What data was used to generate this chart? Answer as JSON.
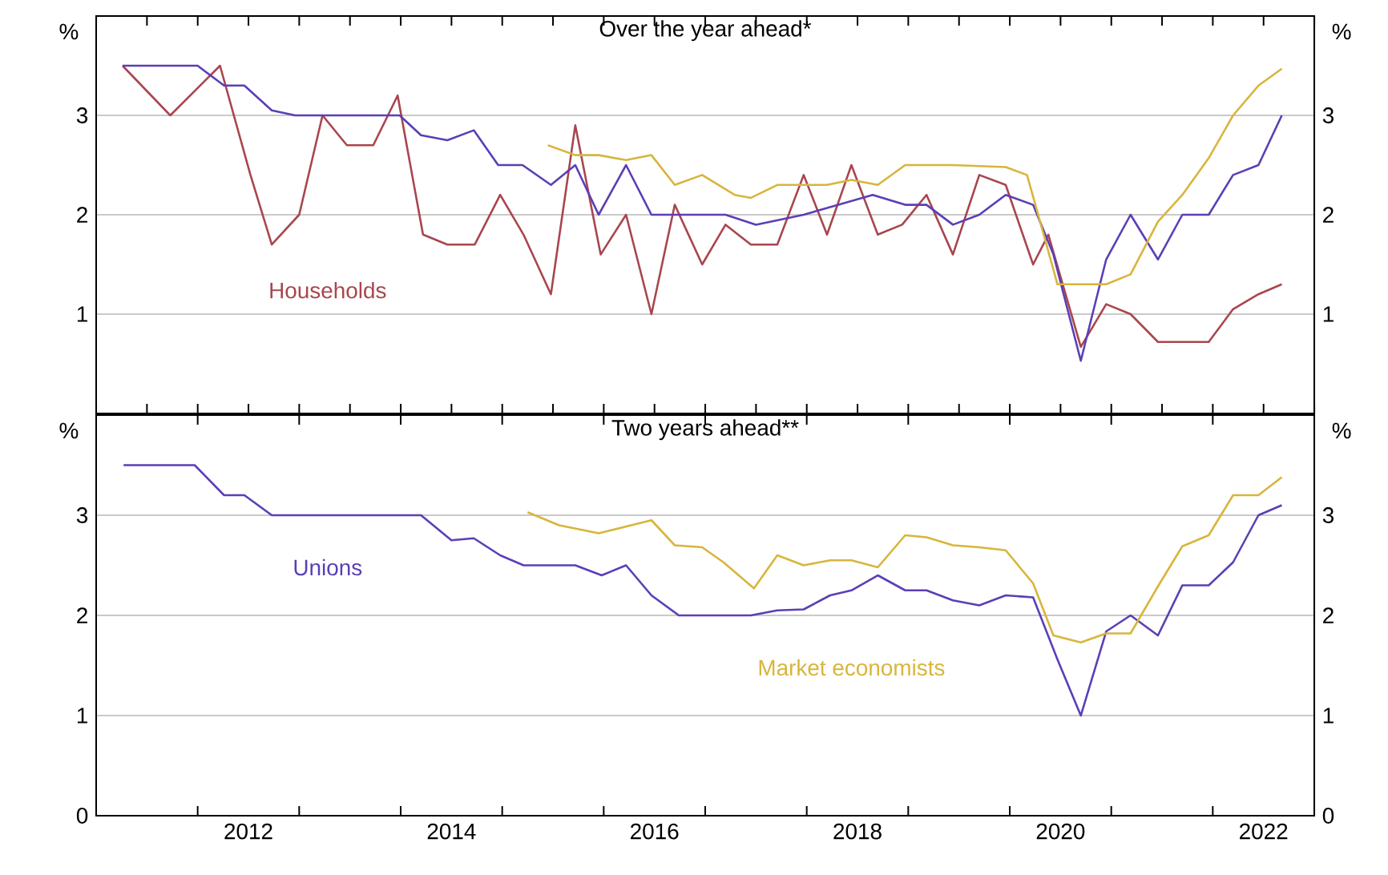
{
  "chart_data": [
    {
      "type": "line",
      "title": "Over the year ahead*",
      "ylabel": "%",
      "y2label": "%",
      "xlim": [
        2011,
        2023
      ],
      "ylim": [
        0,
        4
      ],
      "yticks": [
        1,
        2,
        3
      ],
      "y2lim": [
        0,
        4
      ],
      "y2ticks": [
        1,
        2,
        3
      ],
      "grid": "y",
      "tick_labels": "y",
      "series": [
        {
          "name": "Households",
          "color": "#a8464e",
          "x": [
            2011.26,
            2011.73,
            2012.22,
            2012.52,
            2012.73,
            2013.0,
            2013.23,
            2013.47,
            2013.73,
            2013.97,
            2014.22,
            2014.46,
            2014.73,
            2014.98,
            2015.21,
            2015.48,
            2015.72,
            2015.97,
            2016.22,
            2016.47,
            2016.7,
            2016.97,
            2017.2,
            2017.45,
            2017.71,
            2017.97,
            2018.2,
            2018.44,
            2018.7,
            2018.94,
            2019.18,
            2019.44,
            2019.7,
            2019.96,
            2020.23,
            2020.38,
            2020.7,
            2020.95,
            2021.19,
            2021.46,
            2021.7,
            2021.96,
            2022.2,
            2022.45,
            2022.68
          ],
          "values": [
            3.5,
            3.0,
            3.5,
            2.4,
            1.7,
            2.0,
            3.0,
            2.7,
            2.7,
            3.2,
            1.8,
            1.7,
            1.7,
            2.2,
            1.8,
            1.2,
            2.9,
            1.6,
            2.0,
            1.0,
            2.1,
            1.5,
            1.9,
            1.7,
            1.7,
            2.4,
            1.8,
            2.5,
            1.8,
            1.9,
            2.2,
            1.6,
            2.4,
            2.3,
            1.5,
            1.8,
            0.67,
            1.1,
            1.0,
            0.72,
            0.72,
            0.72,
            1.05,
            1.2,
            1.3
          ]
        },
        {
          "color": "#5b3fb5",
          "x": [
            2011.26,
            2012.0,
            2012.26,
            2012.46,
            2012.73,
            2012.96,
            2013.99,
            2014.2,
            2014.46,
            2014.72,
            2014.96,
            2015.2,
            2015.48,
            2015.72,
            2015.95,
            2016.22,
            2016.47,
            2017.2,
            2017.5,
            2017.97,
            2018.65,
            2018.97,
            2019.18,
            2019.44,
            2019.7,
            2019.96,
            2020.23,
            2020.43,
            2020.7,
            2020.95,
            2021.19,
            2021.46,
            2021.7,
            2021.96,
            2022.2,
            2022.45,
            2022.68
          ],
          "values": [
            3.5,
            3.5,
            3.3,
            3.3,
            3.05,
            3.0,
            3.0,
            2.8,
            2.75,
            2.85,
            2.5,
            2.5,
            2.3,
            2.5,
            2.0,
            2.5,
            2.0,
            2.0,
            1.9,
            2.0,
            2.2,
            2.1,
            2.1,
            1.9,
            2.0,
            2.2,
            2.1,
            1.6,
            0.53,
            1.55,
            2.0,
            1.55,
            2.0,
            2.0,
            2.4,
            2.5,
            3.0
          ]
        },
        {
          "color": "#d8b53c",
          "x": [
            2015.45,
            2015.72,
            2015.95,
            2016.22,
            2016.47,
            2016.7,
            2016.97,
            2017.29,
            2017.45,
            2017.71,
            2018.2,
            2018.44,
            2018.7,
            2018.97,
            2019.44,
            2019.96,
            2020.17,
            2020.28,
            2020.47,
            2020.7,
            2020.95,
            2021.19,
            2021.46,
            2021.7,
            2021.96,
            2022.2,
            2022.45,
            2022.68
          ],
          "values": [
            2.7,
            2.6,
            2.6,
            2.55,
            2.6,
            2.3,
            2.4,
            2.2,
            2.17,
            2.3,
            2.3,
            2.35,
            2.3,
            2.5,
            2.5,
            2.48,
            2.4,
            2.0,
            1.3,
            1.3,
            1.3,
            1.4,
            1.93,
            2.2,
            2.57,
            3.0,
            3.3,
            3.47
          ]
        }
      ]
    },
    {
      "type": "line",
      "title": "Two years ahead**",
      "ylabel": "%",
      "y2label": "%",
      "xlim": [
        2011,
        2023
      ],
      "ylim": [
        0,
        4
      ],
      "yticks": [
        0,
        1,
        2,
        3
      ],
      "y2lim": [
        0,
        4
      ],
      "y2ticks": [
        0,
        1,
        2,
        3
      ],
      "grid": "y",
      "xticks": [
        {
          "value": 2012,
          "label": null
        },
        {
          "value": 2012.5,
          "label": "2012"
        },
        {
          "value": 2013,
          "label": null
        },
        {
          "value": 2014,
          "label": null
        },
        {
          "value": 2014.5,
          "label": "2014"
        },
        {
          "value": 2015,
          "label": null
        },
        {
          "value": 2016,
          "label": null
        },
        {
          "value": 2016.5,
          "label": "2016"
        },
        {
          "value": 2017,
          "label": null
        },
        {
          "value": 2018,
          "label": null
        },
        {
          "value": 2018.5,
          "label": "2018"
        },
        {
          "value": 2019,
          "label": null
        },
        {
          "value": 2020,
          "label": null
        },
        {
          "value": 2020.5,
          "label": "2020"
        },
        {
          "value": 2021,
          "label": null
        },
        {
          "value": 2022,
          "label": null
        },
        {
          "value": 2022.5,
          "label": "2022"
        }
      ],
      "series": [
        {
          "name": "Unions",
          "color": "#5b3fb5",
          "x": [
            2011.27,
            2011.97,
            2012.26,
            2012.46,
            2012.73,
            2014.2,
            2014.5,
            2014.72,
            2014.98,
            2015.21,
            2015.72,
            2015.98,
            2016.22,
            2016.47,
            2016.74,
            2017.45,
            2017.71,
            2017.97,
            2018.23,
            2018.44,
            2018.7,
            2018.97,
            2019.18,
            2019.44,
            2019.7,
            2019.96,
            2020.23,
            2020.47,
            2020.7,
            2020.95,
            2021.19,
            2021.46,
            2021.7,
            2021.96,
            2022.2,
            2022.45,
            2022.68
          ],
          "values": [
            3.5,
            3.5,
            3.2,
            3.2,
            3.0,
            3.0,
            2.75,
            2.77,
            2.6,
            2.5,
            2.5,
            2.4,
            2.5,
            2.2,
            2.0,
            2.0,
            2.05,
            2.06,
            2.2,
            2.25,
            2.4,
            2.25,
            2.25,
            2.15,
            2.1,
            2.2,
            2.18,
            1.56,
            1.0,
            1.84,
            2.0,
            1.8,
            2.3,
            2.3,
            2.53,
            3.0,
            3.1
          ]
        },
        {
          "name": "Market economists",
          "color": "#d8b53c",
          "x": [
            2015.25,
            2015.56,
            2015.95,
            2016.47,
            2016.7,
            2016.97,
            2017.18,
            2017.48,
            2017.71,
            2017.97,
            2018.23,
            2018.44,
            2018.7,
            2018.97,
            2019.18,
            2019.44,
            2019.7,
            2019.96,
            2020.23,
            2020.43,
            2020.7,
            2020.95,
            2021.19,
            2021.46,
            2021.7,
            2021.96,
            2022.2,
            2022.45,
            2022.68
          ],
          "values": [
            3.03,
            2.9,
            2.82,
            2.95,
            2.7,
            2.68,
            2.53,
            2.27,
            2.6,
            2.5,
            2.55,
            2.55,
            2.48,
            2.8,
            2.78,
            2.7,
            2.68,
            2.65,
            2.32,
            1.8,
            1.73,
            1.82,
            1.82,
            2.29,
            2.69,
            2.8,
            3.2,
            3.2,
            3.38
          ]
        }
      ]
    }
  ]
}
